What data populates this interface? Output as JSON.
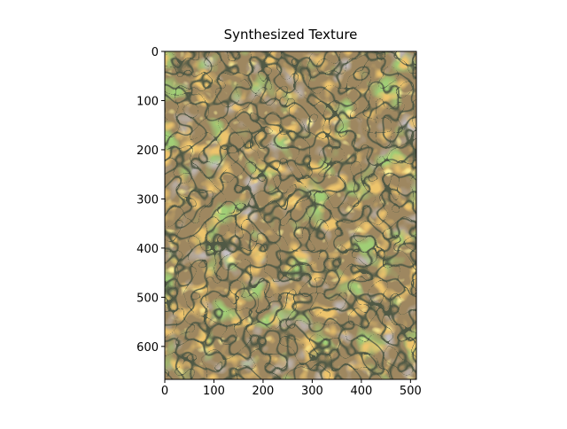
{
  "chart_data": {
    "type": "image",
    "title": "Synthesized Texture",
    "xlim": [
      0,
      512
    ],
    "ylim": [
      667,
      0
    ],
    "xticks": [
      0,
      100,
      200,
      300,
      400,
      500
    ],
    "yticks": [
      0,
      100,
      200,
      300,
      400,
      500,
      600
    ]
  }
}
